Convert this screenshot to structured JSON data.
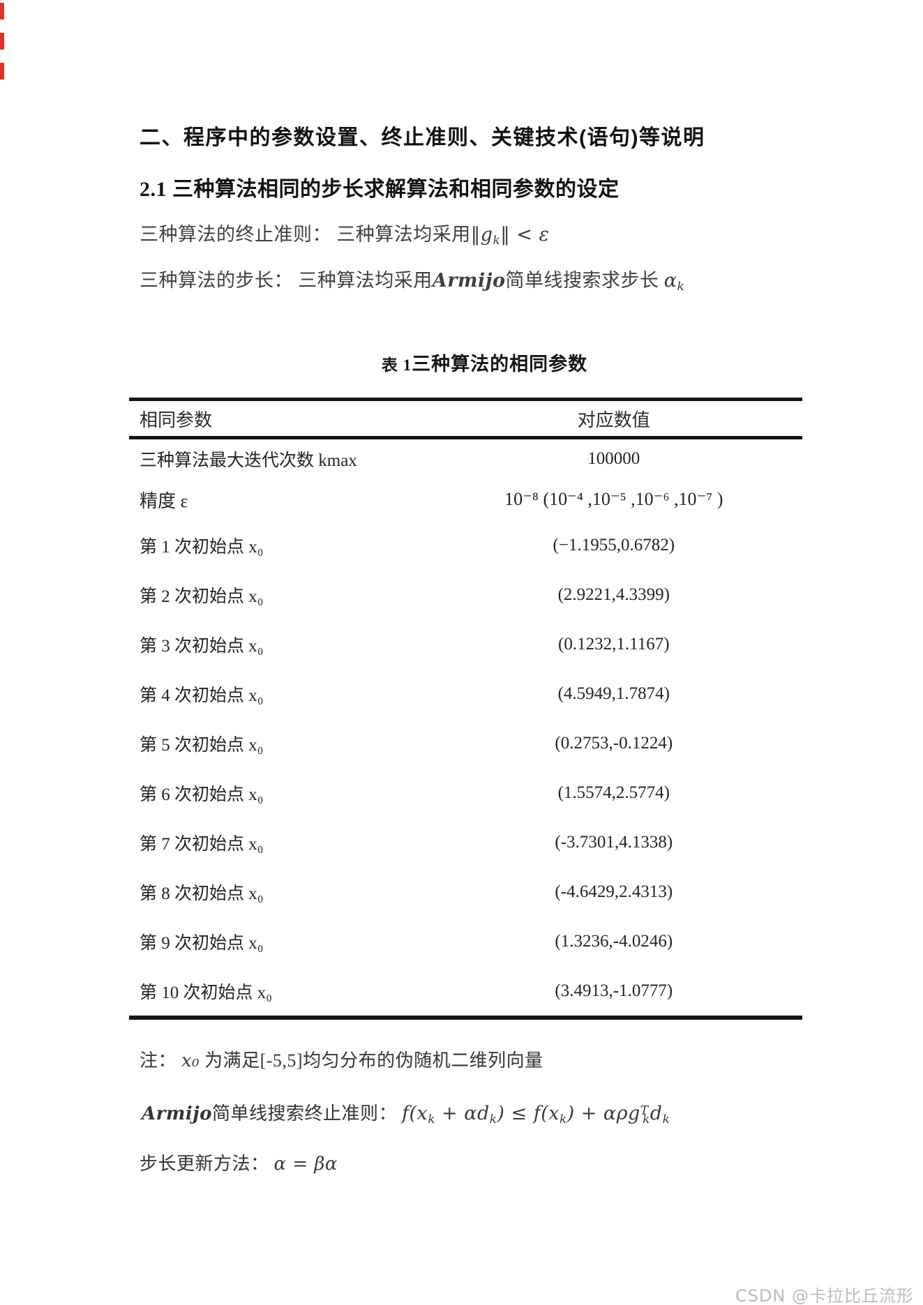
{
  "doc": {
    "heading1": "二、程序中的参数设置、终止准则、关键技术(语句)等说明",
    "heading2": "2.1 三种算法相同的步长求解算法和相同参数的设定",
    "term_prefix": "三种算法的终止准则： 三种算法均采用",
    "term_formula_pre": "‖g",
    "term_formula_sub": "k",
    "term_formula_post": "‖ < ε",
    "step_prefix": "三种算法的步长： 三种算法均采用",
    "step_armijo": "Armijo",
    "step_mid": "简单线搜索求步长 ",
    "step_alpha": "α",
    "step_alpha_sub": "k"
  },
  "table": {
    "caption_label": "表 1",
    "caption_title": "三种算法的相同参数",
    "col_param": "相同参数",
    "col_value": "对应数值",
    "rows": [
      {
        "param": "三种算法最大迭代次数 kmax",
        "value": "100000"
      },
      {
        "param": "精度 ε",
        "value": "10⁻⁸ (10⁻⁴ ,10⁻⁵ ,10⁻⁶ ,10⁻⁷ )"
      },
      {
        "param": "第 1 次初始点 x₀",
        "value": "(−1.1955,0.6782)"
      },
      {
        "param": "第 2 次初始点 x₀",
        "value": "(2.9221,4.3399)"
      },
      {
        "param": "第 3 次初始点 x₀",
        "value": "(0.1232,1.1167)"
      },
      {
        "param": "第 4 次初始点 x₀",
        "value": "(4.5949,1.7874)"
      },
      {
        "param": "第 5 次初始点 x₀",
        "value": "(0.2753,-0.1224)"
      },
      {
        "param": "第 6 次初始点 x₀",
        "value": "(1.5574,2.5774)"
      },
      {
        "param": "第 7 次初始点 x₀",
        "value": "(-3.7301,4.1338)"
      },
      {
        "param": "第 8 次初始点 x₀",
        "value": "(-4.6429,2.4313)"
      },
      {
        "param": "第 9 次初始点 x₀",
        "value": "(1.3236,-4.0246)"
      },
      {
        "param": "第 10 次初始点 x₀",
        "value": "(3.4913,-1.0777)"
      }
    ]
  },
  "notes": {
    "note_label": "注： ",
    "note_x0": "x₀",
    "note_text": " 为满足[-5,5]均匀分布的伪随机二维列向量",
    "armijo_name": "Armijo",
    "armijo_label": "简单线搜索终止准则： ",
    "armijo_f": {
      "p1": "f(x",
      "s1": "k",
      "p2": " + αd",
      "s2": "k",
      "p3": ") ≤ f(x",
      "s3": "k",
      "p4": ") + αρg",
      "supT": "T",
      "s4": "k",
      "p5": "d",
      "s5": "k"
    },
    "step_label": "步长更新方法： ",
    "step_formula": "α = βα"
  },
  "watermark": "CSDN @卡拉比丘流形",
  "colors": {
    "red_marks": "#e0312b",
    "table_border": "#161616",
    "watermark_gray": "#bcbcbc"
  }
}
